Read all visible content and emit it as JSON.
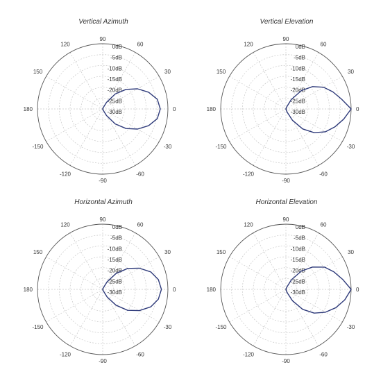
{
  "style": {
    "curve_color": "#2e3a7a",
    "circle_color": "#555555",
    "grid_color": "#c8c8c8",
    "label_color": "#333333",
    "background": "#ffffff"
  },
  "chart_data": [
    {
      "type": "polar-line",
      "title": "Vertical Azimuth",
      "angle_unit": "deg",
      "angle_ticks": [
        "0",
        "30",
        "60",
        "90",
        "120",
        "150",
        "180",
        "-150",
        "-120",
        "-90",
        "-60",
        "-30"
      ],
      "angle_tick_values": [
        0,
        30,
        60,
        90,
        120,
        150,
        180,
        -150,
        -120,
        -90,
        -60,
        -30
      ],
      "radial_ticks": [
        "0dB",
        "-5dB",
        "-10dB",
        "-15dB",
        "-20dB",
        "-25dB",
        "-30dB"
      ],
      "rlim": [
        -30,
        0
      ],
      "grid": true,
      "series": [
        {
          "theta": [
            0,
            10,
            20,
            30,
            40,
            50,
            60,
            70,
            80,
            90,
            -10,
            -20,
            -30,
            -40,
            -50,
            -60,
            -70,
            -80,
            -90
          ],
          "r_db": [
            -3.5,
            -4.5,
            -7.5,
            -11.5,
            -16,
            -21,
            -26.5,
            -29.5,
            -30,
            -30,
            -4.5,
            -7.5,
            -11.5,
            -16,
            -21,
            -26.5,
            -29.5,
            -30,
            -30
          ]
        }
      ]
    },
    {
      "type": "polar-line",
      "title": "Vertical Elevation",
      "angle_unit": "deg",
      "angle_ticks": [
        "0",
        "30",
        "60",
        "90",
        "120",
        "150",
        "180",
        "-150",
        "-120",
        "-90",
        "-60",
        "-30"
      ],
      "angle_tick_values": [
        0,
        30,
        60,
        90,
        120,
        150,
        180,
        -150,
        -120,
        -90,
        -60,
        -30
      ],
      "radial_ticks": [
        "0dB",
        "-5dB",
        "-10dB",
        "-15dB",
        "-20dB",
        "-25dB",
        "-30dB"
      ],
      "rlim": [
        -30,
        0
      ],
      "grid": true,
      "series": [
        {
          "theta": [
            0,
            10,
            20,
            30,
            40,
            50,
            60,
            70,
            80,
            90,
            -10,
            -20,
            -30,
            -40,
            -50,
            -60,
            -70,
            -80,
            -90
          ],
          "r_db": [
            0,
            -4,
            -7,
            -10,
            -14,
            -19,
            -25,
            -29,
            -30,
            -30,
            -3,
            -6,
            -9,
            -13,
            -18,
            -24,
            -28.5,
            -30,
            -30
          ]
        }
      ]
    },
    {
      "type": "polar-line",
      "title": "Horizontal Azimuth",
      "angle_unit": "deg",
      "angle_ticks": [
        "0",
        "30",
        "60",
        "90",
        "120",
        "150",
        "180",
        "-150",
        "-120",
        "-90",
        "-60",
        "-30"
      ],
      "angle_tick_values": [
        0,
        30,
        60,
        90,
        120,
        150,
        180,
        -150,
        -120,
        -90,
        -60,
        -30
      ],
      "radial_ticks": [
        "0dB",
        "-5dB",
        "-10dB",
        "-15dB",
        "-20dB",
        "-25dB",
        "-30dB"
      ],
      "rlim": [
        -30,
        0
      ],
      "grid": true,
      "series": [
        {
          "theta": [
            0,
            10,
            20,
            30,
            40,
            50,
            60,
            70,
            80,
            90,
            -10,
            -20,
            -30,
            -40,
            -50,
            -60,
            -70,
            -80,
            -90
          ],
          "r_db": [
            -3,
            -4,
            -6.5,
            -10.5,
            -15,
            -20.5,
            -26,
            -29.5,
            -30,
            -30,
            -4,
            -6.5,
            -10.5,
            -15,
            -20.5,
            -26,
            -29.5,
            -30,
            -30
          ]
        }
      ]
    },
    {
      "type": "polar-line",
      "title": "Horizontal Elevation",
      "angle_unit": "deg",
      "angle_ticks": [
        "0",
        "30",
        "60",
        "90",
        "120",
        "150",
        "180",
        "-150",
        "-120",
        "-90",
        "-60",
        "-30"
      ],
      "angle_tick_values": [
        0,
        30,
        60,
        90,
        120,
        150,
        180,
        -150,
        -120,
        -90,
        -60,
        -30
      ],
      "radial_ticks": [
        "0dB",
        "-5dB",
        "-10dB",
        "-15dB",
        "-20dB",
        "-25dB",
        "-30dB"
      ],
      "rlim": [
        -30,
        0
      ],
      "grid": true,
      "series": [
        {
          "theta": [
            0,
            10,
            20,
            30,
            40,
            50,
            60,
            70,
            80,
            90,
            -10,
            -20,
            -30,
            -40,
            -50,
            -60,
            -70,
            -80,
            -90
          ],
          "r_db": [
            0,
            -3.5,
            -6.5,
            -9.5,
            -14,
            -19,
            -25,
            -29,
            -30,
            -30,
            -2.5,
            -5.5,
            -9,
            -13,
            -18,
            -24,
            -28.5,
            -30,
            -30
          ]
        }
      ]
    }
  ]
}
